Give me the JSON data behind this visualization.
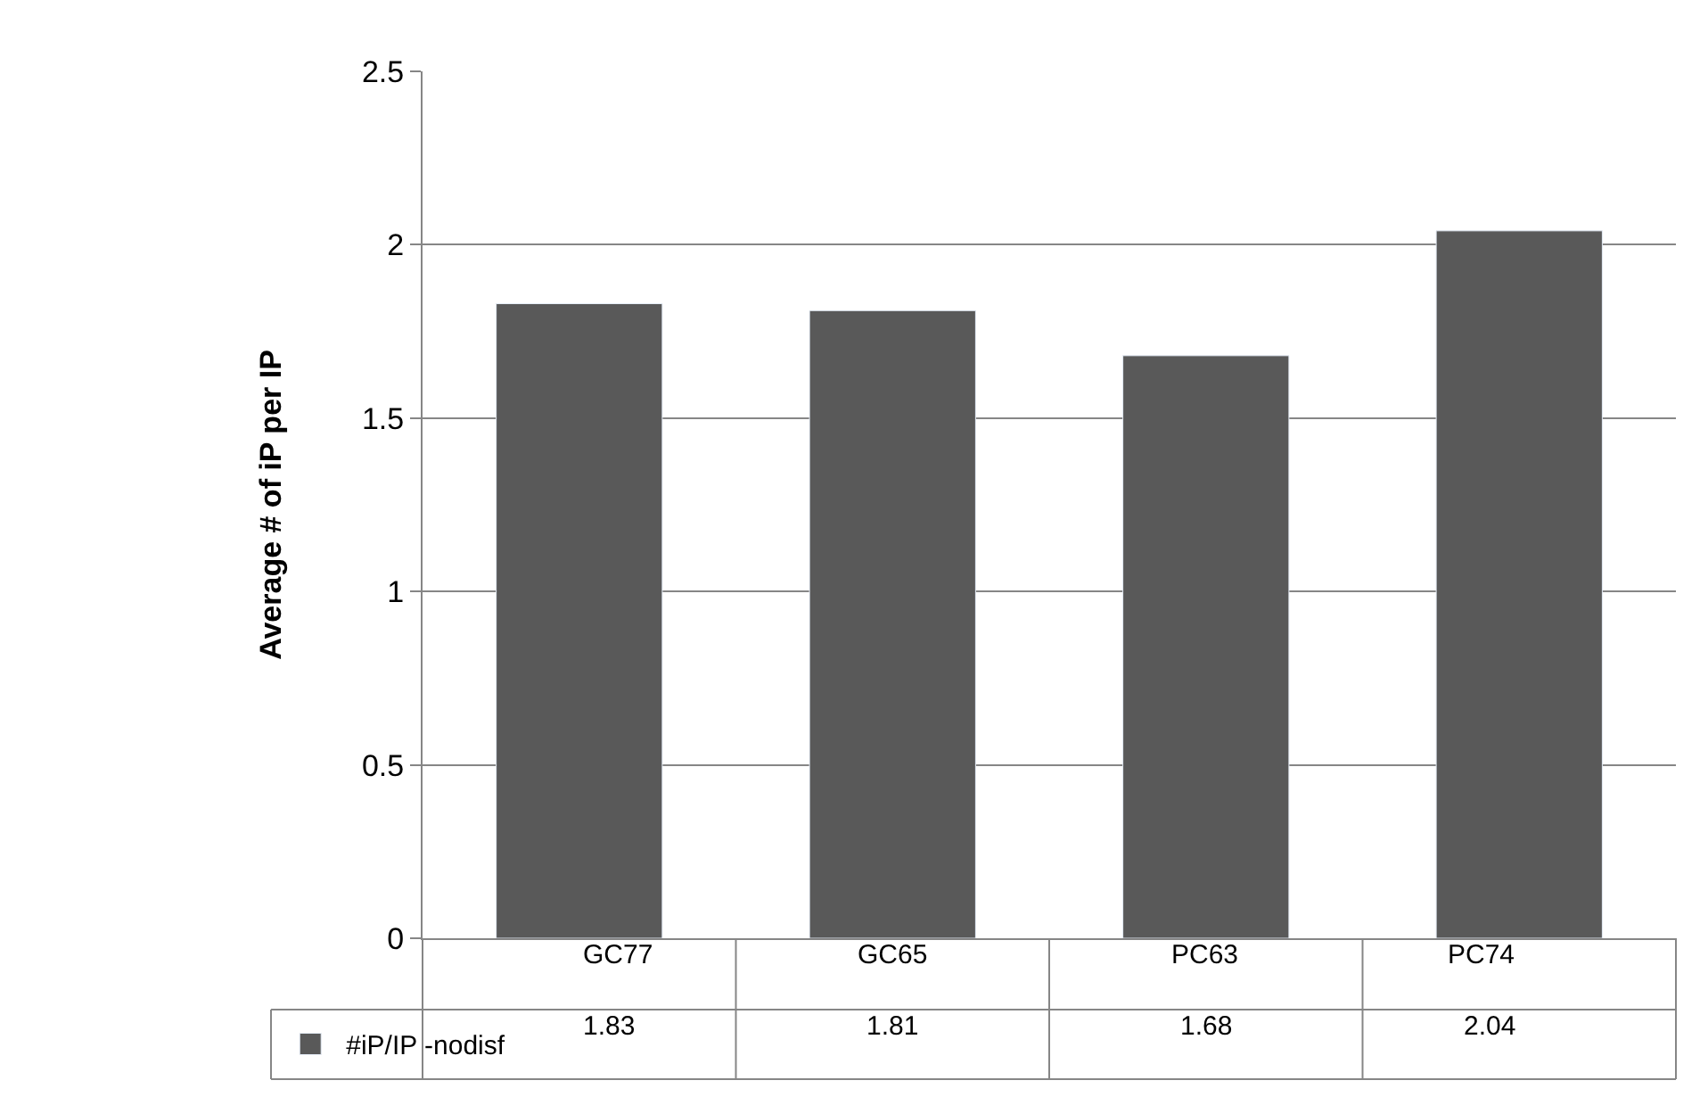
{
  "chart_data": {
    "type": "bar",
    "ylabel": "Average # of iP per IP",
    "categories": [
      "GC77",
      "GC65",
      "PC63",
      "PC74"
    ],
    "series": [
      {
        "name": "#iP/IP -nodisf",
        "color": "#595959",
        "values": [
          1.83,
          1.81,
          1.68,
          2.04
        ]
      }
    ],
    "ylim": [
      0,
      2.5
    ],
    "yticks": [
      0,
      0.5,
      1,
      1.5,
      2,
      2.5
    ],
    "grid": "y",
    "legend": "bottom",
    "data_labels": true
  }
}
